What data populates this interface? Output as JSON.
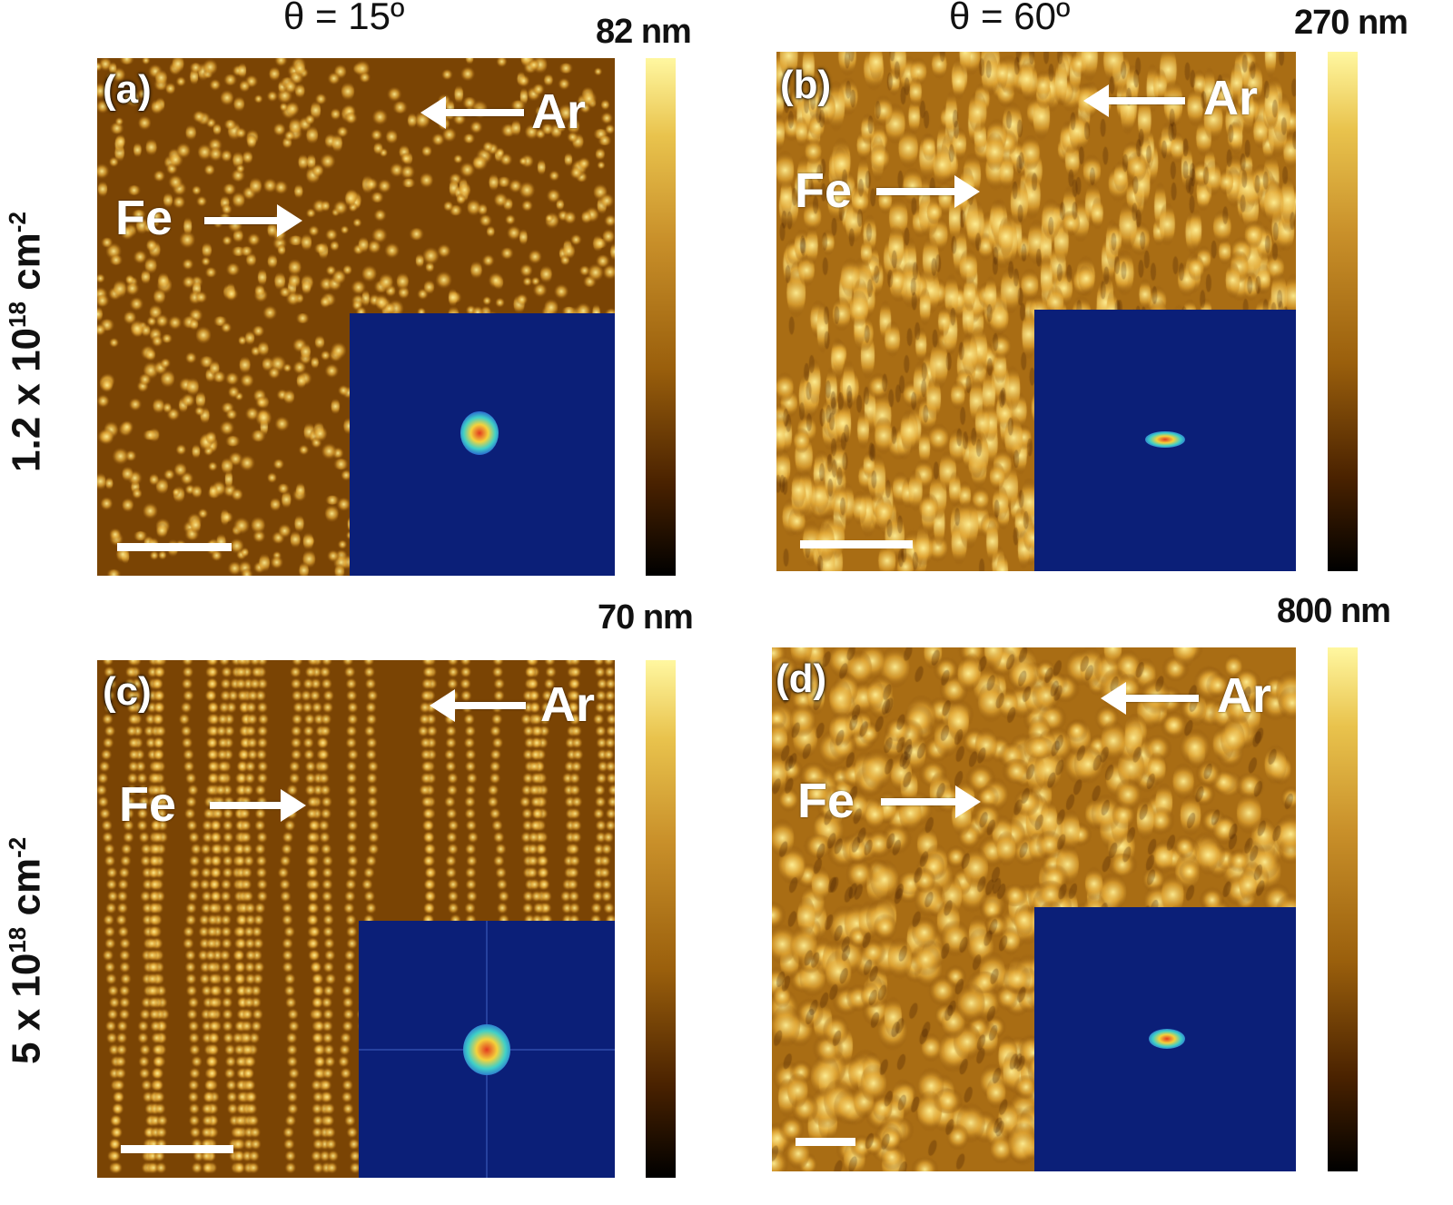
{
  "column_headers": [
    "θ = 15º",
    "θ = 60º"
  ],
  "row_labels": [
    {
      "prefix": "1.2 x 10",
      "exp": "18",
      "unit": " cm",
      "unit_exp": "-2"
    },
    {
      "prefix": "5 x 10",
      "exp": "18",
      "unit": " cm",
      "unit_exp": "-2"
    }
  ],
  "panels": [
    {
      "label": "(a)",
      "fe": "Fe",
      "ar": "Ar",
      "scale_max": "82 nm"
    },
    {
      "label": "(b)",
      "fe": "Fe",
      "ar": "Ar",
      "scale_max": "270 nm"
    },
    {
      "label": "(c)",
      "fe": "Fe",
      "ar": "Ar",
      "scale_max": "70 nm"
    },
    {
      "label": "(d)",
      "fe": "Fe",
      "ar": "Ar",
      "scale_max": "800 nm"
    }
  ],
  "colors": {
    "inset_background": "#0b1f78",
    "afm_dark": "#4a2200",
    "afm_bright": "#fff7a0"
  }
}
